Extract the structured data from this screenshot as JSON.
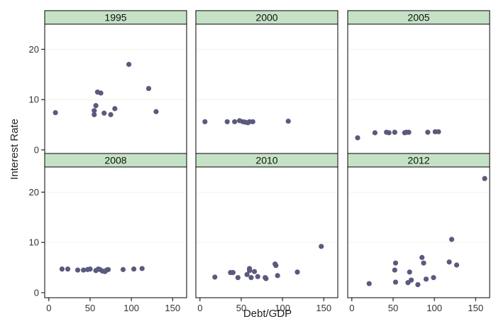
{
  "chart_data": {
    "type": "scatter",
    "xlabel": "Debt/GDP",
    "ylabel": "Interest Rate",
    "xlim": [
      -5,
      167
    ],
    "ylim": [
      -1,
      25
    ],
    "x_ticks": [
      0,
      50,
      100,
      150
    ],
    "y_ticks": [
      0,
      10,
      20
    ],
    "grid": "horizontal",
    "colors": {
      "strip": "#c6e2c6",
      "marker": "#5a5a7e",
      "grid": "#f2f2e2",
      "frame": "#000000"
    },
    "panels": [
      {
        "title": "1995",
        "points": [
          [
            8,
            7.4
          ],
          [
            55,
            7.0
          ],
          [
            55,
            7.8
          ],
          [
            57,
            8.8
          ],
          [
            59,
            11.5
          ],
          [
            63,
            11.3
          ],
          [
            67,
            7.3
          ],
          [
            75,
            7.0
          ],
          [
            80,
            8.2
          ],
          [
            97,
            17.0
          ],
          [
            121,
            12.2
          ],
          [
            130,
            7.6
          ]
        ]
      },
      {
        "title": "2000",
        "points": [
          [
            6,
            5.6
          ],
          [
            33,
            5.6
          ],
          [
            42,
            5.6
          ],
          [
            48,
            5.8
          ],
          [
            52,
            5.6
          ],
          [
            55,
            5.5
          ],
          [
            58,
            5.4
          ],
          [
            60,
            5.6
          ],
          [
            64,
            5.6
          ],
          [
            107,
            5.7
          ]
        ]
      },
      {
        "title": "2005",
        "points": [
          [
            7,
            2.4
          ],
          [
            28,
            3.4
          ],
          [
            42,
            3.5
          ],
          [
            45,
            3.4
          ],
          [
            52,
            3.5
          ],
          [
            64,
            3.4
          ],
          [
            66,
            3.5
          ],
          [
            69,
            3.5
          ],
          [
            92,
            3.5
          ],
          [
            101,
            3.6
          ],
          [
            105,
            3.6
          ]
        ]
      },
      {
        "title": "2008",
        "points": [
          [
            16,
            4.7
          ],
          [
            23,
            4.7
          ],
          [
            35,
            4.5
          ],
          [
            42,
            4.5
          ],
          [
            47,
            4.6
          ],
          [
            50,
            4.7
          ],
          [
            57,
            4.4
          ],
          [
            60,
            4.7
          ],
          [
            62,
            4.6
          ],
          [
            65,
            4.3
          ],
          [
            68,
            4.2
          ],
          [
            70,
            4.5
          ],
          [
            72,
            4.6
          ],
          [
            90,
            4.6
          ],
          [
            103,
            4.7
          ],
          [
            113,
            4.8
          ]
        ]
      },
      {
        "title": "2010",
        "points": [
          [
            18,
            3.1
          ],
          [
            37,
            4.0
          ],
          [
            40,
            4.0
          ],
          [
            46,
            3.0
          ],
          [
            57,
            3.6
          ],
          [
            60,
            4.4
          ],
          [
            60,
            4.8
          ],
          [
            62,
            3.0
          ],
          [
            66,
            4.2
          ],
          [
            70,
            3.2
          ],
          [
            79,
            3.0
          ],
          [
            80,
            2.8
          ],
          [
            91,
            5.7
          ],
          [
            92,
            5.4
          ],
          [
            94,
            3.4
          ],
          [
            118,
            4.1
          ],
          [
            147,
            9.2
          ]
        ]
      },
      {
        "title": "2012",
        "points": [
          [
            21,
            1.8
          ],
          [
            52,
            4.5
          ],
          [
            53,
            5.9
          ],
          [
            53,
            2.1
          ],
          [
            68,
            2.0
          ],
          [
            70,
            4.1
          ],
          [
            72,
            2.5
          ],
          [
            80,
            1.6
          ],
          [
            85,
            7.0
          ],
          [
            87,
            5.9
          ],
          [
            90,
            2.7
          ],
          [
            99,
            3.0
          ],
          [
            118,
            6.1
          ],
          [
            121,
            10.6
          ],
          [
            127,
            5.5
          ],
          [
            161,
            22.7
          ]
        ]
      }
    ]
  }
}
